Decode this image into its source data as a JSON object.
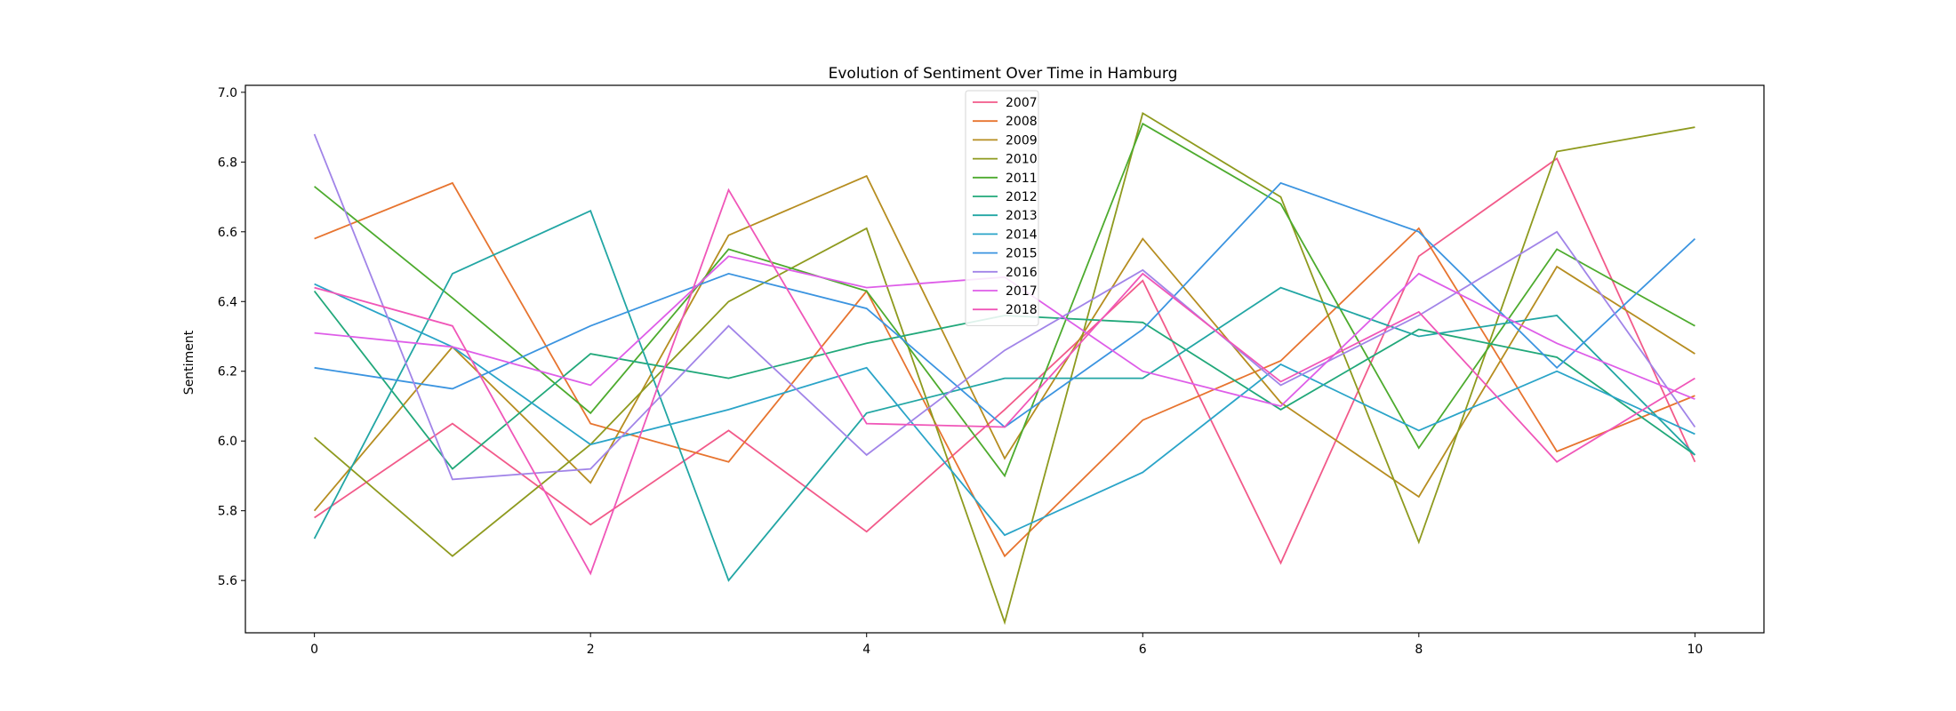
{
  "chart_data": {
    "type": "line",
    "title": "Evolution of Sentiment Over Time in Hamburg",
    "xlabel": "",
    "ylabel": "Sentiment",
    "xlim": [
      -0.5,
      10.5
    ],
    "ylim": [
      5.45,
      7.02
    ],
    "xticks": [
      0,
      2,
      4,
      6,
      8,
      10
    ],
    "yticks": [
      5.6,
      5.8,
      6.0,
      6.2,
      6.4,
      6.6,
      6.8,
      7.0
    ],
    "ytick_labels": [
      "5.6",
      "5.8",
      "6.0",
      "6.2",
      "6.4",
      "6.6",
      "6.8",
      "7.0"
    ],
    "grid": false,
    "legend_position": "top-center",
    "x": [
      0,
      1,
      2,
      3,
      4,
      5,
      6,
      7,
      8,
      9,
      10
    ],
    "series": [
      {
        "name": "2007",
        "color": "#f25a8a",
        "values": [
          5.78,
          6.05,
          5.76,
          6.03,
          5.74,
          6.09,
          6.46,
          5.65,
          6.53,
          6.81,
          5.94
        ]
      },
      {
        "name": "2008",
        "color": "#e7742f",
        "values": [
          6.58,
          6.74,
          6.05,
          5.94,
          6.43,
          5.67,
          6.06,
          6.23,
          6.61,
          5.97,
          6.13
        ]
      },
      {
        "name": "2009",
        "color": "#b68d20",
        "values": [
          5.8,
          6.27,
          5.88,
          6.59,
          6.76,
          5.95,
          6.58,
          6.11,
          5.84,
          6.5,
          6.25
        ]
      },
      {
        "name": "2010",
        "color": "#8e9a1e",
        "values": [
          6.01,
          5.67,
          5.99,
          6.4,
          6.61,
          5.48,
          6.94,
          6.7,
          5.71,
          6.83,
          6.9
        ]
      },
      {
        "name": "2011",
        "color": "#4dab2e",
        "values": [
          6.73,
          6.41,
          6.08,
          6.55,
          6.43,
          5.9,
          6.91,
          6.68,
          5.98,
          6.55,
          6.33
        ]
      },
      {
        "name": "2012",
        "color": "#21a87a",
        "values": [
          6.43,
          5.92,
          6.25,
          6.18,
          6.28,
          6.36,
          6.34,
          6.09,
          6.32,
          6.24,
          5.96
        ]
      },
      {
        "name": "2013",
        "color": "#22a6a4",
        "values": [
          5.72,
          6.48,
          6.66,
          5.6,
          6.08,
          6.18,
          6.18,
          6.44,
          6.3,
          6.36,
          5.96
        ]
      },
      {
        "name": "2014",
        "color": "#2aa4c8",
        "values": [
          6.45,
          6.27,
          5.99,
          6.09,
          6.21,
          5.73,
          5.91,
          6.22,
          6.03,
          6.2,
          6.02
        ]
      },
      {
        "name": "2015",
        "color": "#3b94e0",
        "values": [
          6.21,
          6.15,
          6.33,
          6.48,
          6.38,
          6.04,
          6.32,
          6.74,
          6.6,
          6.21,
          6.58
        ]
      },
      {
        "name": "2016",
        "color": "#a184e8",
        "values": [
          6.88,
          5.89,
          5.92,
          6.33,
          5.96,
          6.26,
          6.49,
          6.16,
          6.36,
          6.6,
          6.04
        ]
      },
      {
        "name": "2017",
        "color": "#de5de8",
        "values": [
          6.31,
          6.27,
          6.16,
          6.53,
          6.44,
          6.47,
          6.2,
          6.1,
          6.48,
          6.28,
          6.12
        ]
      },
      {
        "name": "2018",
        "color": "#f056b8",
        "values": [
          6.44,
          6.33,
          5.62,
          6.72,
          6.05,
          6.04,
          6.48,
          6.17,
          6.37,
          5.94,
          6.18
        ]
      }
    ]
  }
}
